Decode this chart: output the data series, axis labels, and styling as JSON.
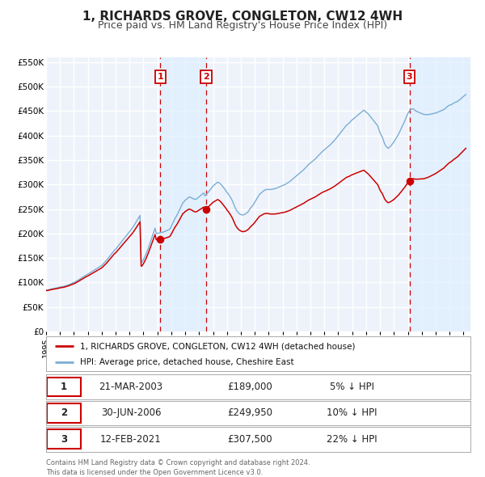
{
  "title": "1, RICHARDS GROVE, CONGLETON, CW12 4WH",
  "subtitle": "Price paid vs. HM Land Registry's House Price Index (HPI)",
  "title_fontsize": 11,
  "subtitle_fontsize": 9,
  "ylabel_ticks": [
    "£0",
    "£50K",
    "£100K",
    "£150K",
    "£200K",
    "£250K",
    "£300K",
    "£350K",
    "£400K",
    "£450K",
    "£500K",
    "£550K"
  ],
  "ylabel_values": [
    0,
    50000,
    100000,
    150000,
    200000,
    250000,
    300000,
    350000,
    400000,
    450000,
    500000,
    550000
  ],
  "ylim": [
    0,
    560000
  ],
  "xlim_start": 1995.0,
  "xlim_end": 2025.5,
  "bg_color": "#eef3fb",
  "plot_bg_color": "#eef3fb",
  "grid_color": "#ffffff",
  "sale_color": "#cc0000",
  "hpi_color": "#7aadd4",
  "sale_label": "1, RICHARDS GROVE, CONGLETON, CW12 4WH (detached house)",
  "hpi_label": "HPI: Average price, detached house, Cheshire East",
  "transactions": [
    {
      "num": 1,
      "date": "21-MAR-2003",
      "price": 189000,
      "pct": "5%",
      "x": 2003.22
    },
    {
      "num": 2,
      "date": "30-JUN-2006",
      "price": 249950,
      "pct": "10%",
      "x": 2006.5
    },
    {
      "num": 3,
      "date": "12-FEB-2021",
      "price": 307500,
      "pct": "22%",
      "x": 2021.12
    }
  ],
  "footer": "Contains HM Land Registry data © Crown copyright and database right 2024.\nThis data is licensed under the Open Government Licence v3.0.",
  "hpi_x": [
    1995.0,
    1995.083,
    1995.167,
    1995.25,
    1995.333,
    1995.417,
    1995.5,
    1995.583,
    1995.667,
    1995.75,
    1995.833,
    1995.917,
    1996.0,
    1996.083,
    1996.167,
    1996.25,
    1996.333,
    1996.417,
    1996.5,
    1996.583,
    1996.667,
    1996.75,
    1996.833,
    1996.917,
    1997.0,
    1997.083,
    1997.167,
    1997.25,
    1997.333,
    1997.417,
    1997.5,
    1997.583,
    1997.667,
    1997.75,
    1997.833,
    1997.917,
    1998.0,
    1998.083,
    1998.167,
    1998.25,
    1998.333,
    1998.417,
    1998.5,
    1998.583,
    1998.667,
    1998.75,
    1998.833,
    1998.917,
    1999.0,
    1999.083,
    1999.167,
    1999.25,
    1999.333,
    1999.417,
    1999.5,
    1999.583,
    1999.667,
    1999.75,
    1999.833,
    1999.917,
    2000.0,
    2000.083,
    2000.167,
    2000.25,
    2000.333,
    2000.417,
    2000.5,
    2000.583,
    2000.667,
    2000.75,
    2000.833,
    2000.917,
    2001.0,
    2001.083,
    2001.167,
    2001.25,
    2001.333,
    2001.417,
    2001.5,
    2001.583,
    2001.667,
    2001.75,
    2001.833,
    2001.917,
    2002.0,
    2002.083,
    2002.167,
    2002.25,
    2002.333,
    2002.417,
    2002.5,
    2002.583,
    2002.667,
    2002.75,
    2002.833,
    2002.917,
    2003.0,
    2003.083,
    2003.167,
    2003.25,
    2003.333,
    2003.417,
    2003.5,
    2003.583,
    2003.667,
    2003.75,
    2003.833,
    2003.917,
    2004.0,
    2004.083,
    2004.167,
    2004.25,
    2004.333,
    2004.417,
    2004.5,
    2004.583,
    2004.667,
    2004.75,
    2004.833,
    2004.917,
    2005.0,
    2005.083,
    2005.167,
    2005.25,
    2005.333,
    2005.417,
    2005.5,
    2005.583,
    2005.667,
    2005.75,
    2005.833,
    2005.917,
    2006.0,
    2006.083,
    2006.167,
    2006.25,
    2006.333,
    2006.417,
    2006.5,
    2006.583,
    2006.667,
    2006.75,
    2006.833,
    2006.917,
    2007.0,
    2007.083,
    2007.167,
    2007.25,
    2007.333,
    2007.417,
    2007.5,
    2007.583,
    2007.667,
    2007.75,
    2007.833,
    2007.917,
    2008.0,
    2008.083,
    2008.167,
    2008.25,
    2008.333,
    2008.417,
    2008.5,
    2008.583,
    2008.667,
    2008.75,
    2008.833,
    2008.917,
    2009.0,
    2009.083,
    2009.167,
    2009.25,
    2009.333,
    2009.417,
    2009.5,
    2009.583,
    2009.667,
    2009.75,
    2009.833,
    2009.917,
    2010.0,
    2010.083,
    2010.167,
    2010.25,
    2010.333,
    2010.417,
    2010.5,
    2010.583,
    2010.667,
    2010.75,
    2010.833,
    2010.917,
    2011.0,
    2011.083,
    2011.167,
    2011.25,
    2011.333,
    2011.417,
    2011.5,
    2011.583,
    2011.667,
    2011.75,
    2011.833,
    2011.917,
    2012.0,
    2012.083,
    2012.167,
    2012.25,
    2012.333,
    2012.417,
    2012.5,
    2012.583,
    2012.667,
    2012.75,
    2012.833,
    2012.917,
    2013.0,
    2013.083,
    2013.167,
    2013.25,
    2013.333,
    2013.417,
    2013.5,
    2013.583,
    2013.667,
    2013.75,
    2013.833,
    2013.917,
    2014.0,
    2014.083,
    2014.167,
    2014.25,
    2014.333,
    2014.417,
    2014.5,
    2014.583,
    2014.667,
    2014.75,
    2014.833,
    2014.917,
    2015.0,
    2015.083,
    2015.167,
    2015.25,
    2015.333,
    2015.417,
    2015.5,
    2015.583,
    2015.667,
    2015.75,
    2015.833,
    2015.917,
    2016.0,
    2016.083,
    2016.167,
    2016.25,
    2016.333,
    2016.417,
    2016.5,
    2016.583,
    2016.667,
    2016.75,
    2016.833,
    2016.917,
    2017.0,
    2017.083,
    2017.167,
    2017.25,
    2017.333,
    2017.417,
    2017.5,
    2017.583,
    2017.667,
    2017.75,
    2017.833,
    2017.917,
    2018.0,
    2018.083,
    2018.167,
    2018.25,
    2018.333,
    2018.417,
    2018.5,
    2018.583,
    2018.667,
    2018.75,
    2018.833,
    2018.917,
    2019.0,
    2019.083,
    2019.167,
    2019.25,
    2019.333,
    2019.417,
    2019.5,
    2019.583,
    2019.667,
    2019.75,
    2019.833,
    2019.917,
    2020.0,
    2020.083,
    2020.167,
    2020.25,
    2020.333,
    2020.417,
    2020.5,
    2020.583,
    2020.667,
    2020.75,
    2020.833,
    2020.917,
    2021.0,
    2021.083,
    2021.167,
    2021.25,
    2021.333,
    2021.417,
    2021.5,
    2021.583,
    2021.667,
    2021.75,
    2021.833,
    2021.917,
    2022.0,
    2022.083,
    2022.167,
    2022.25,
    2022.333,
    2022.417,
    2022.5,
    2022.583,
    2022.667,
    2022.75,
    2022.833,
    2022.917,
    2023.0,
    2023.083,
    2023.167,
    2023.25,
    2023.333,
    2023.417,
    2023.5,
    2023.583,
    2023.667,
    2023.75,
    2023.833,
    2023.917,
    2024.0,
    2024.083,
    2024.167,
    2024.25,
    2024.333,
    2024.417,
    2024.5,
    2024.583,
    2024.667,
    2024.75,
    2024.833,
    2024.917,
    2025.0,
    2025.083,
    2025.167
  ],
  "hpi_y": [
    85000,
    84500,
    85200,
    86000,
    86500,
    87000,
    87500,
    88000,
    88500,
    89000,
    89500,
    90000,
    90800,
    91200,
    91500,
    92000,
    92800,
    93500,
    94200,
    95000,
    96000,
    97000,
    98000,
    99200,
    100000,
    101000,
    102500,
    104000,
    105500,
    107000,
    108500,
    110000,
    111500,
    113000,
    114500,
    116000,
    117000,
    118500,
    120000,
    121500,
    123000,
    124500,
    126000,
    127500,
    129000,
    130500,
    132000,
    133500,
    135000,
    137500,
    140000,
    142500,
    145000,
    148000,
    151000,
    154000,
    157000,
    160000,
    163000,
    166000,
    168000,
    171000,
    174000,
    177000,
    180000,
    183000,
    186000,
    189000,
    192000,
    195000,
    198000,
    201000,
    204000,
    207000,
    210000,
    213500,
    217000,
    221000,
    225000,
    229000,
    233000,
    237000,
    141000,
    143000,
    147000,
    152000,
    157000,
    163000,
    169000,
    176000,
    183000,
    190000,
    197000,
    204000,
    211000,
    200000,
    200500,
    201000,
    201500,
    202000,
    202500,
    203000,
    204000,
    205000,
    206000,
    207000,
    208000,
    210000,
    215000,
    220000,
    225000,
    230000,
    234000,
    238000,
    243000,
    248000,
    253000,
    258000,
    263000,
    265000,
    268000,
    270000,
    272000,
    274000,
    274500,
    273500,
    272500,
    271000,
    270000,
    270000,
    271000,
    273000,
    275000,
    277000,
    279000,
    281000,
    283000,
    277000,
    279000,
    282000,
    285000,
    288000,
    291000,
    294000,
    297000,
    299000,
    301000,
    303000,
    305000,
    304000,
    302000,
    300000,
    297000,
    294000,
    291000,
    288000,
    284000,
    281000,
    278000,
    274000,
    270000,
    265000,
    259000,
    253000,
    248000,
    245000,
    242000,
    240000,
    239000,
    238000,
    238000,
    239000,
    240000,
    242000,
    244000,
    247000,
    251000,
    254000,
    257000,
    260000,
    264000,
    268000,
    272000,
    276000,
    280000,
    282000,
    284000,
    286000,
    288000,
    289000,
    290000,
    290000,
    290000,
    290000,
    290000,
    290500,
    291000,
    291500,
    292000,
    293000,
    294000,
    295000,
    296000,
    297000,
    298000,
    299000,
    300000,
    301500,
    303000,
    304500,
    306000,
    308000,
    310000,
    312000,
    314000,
    316000,
    318000,
    320000,
    322000,
    324000,
    326000,
    328000,
    330000,
    332500,
    335000,
    337500,
    340000,
    342000,
    344000,
    346000,
    348000,
    350000,
    352000,
    354500,
    357000,
    359500,
    362000,
    364500,
    367000,
    369000,
    371000,
    373000,
    375000,
    377000,
    379000,
    381000,
    383500,
    386000,
    388500,
    391000,
    394000,
    397000,
    400000,
    403000,
    406000,
    409000,
    412000,
    415000,
    418000,
    421000,
    423000,
    425000,
    427000,
    430000,
    432000,
    434000,
    436000,
    438000,
    440000,
    442000,
    444000,
    446000,
    448000,
    450000,
    452000,
    450000,
    448000,
    446000,
    444000,
    441000,
    438000,
    435000,
    432000,
    429000,
    426000,
    423000,
    420000,
    413000,
    406000,
    401000,
    397000,
    390000,
    383000,
    379000,
    376000,
    374000,
    376000,
    378000,
    381000,
    384000,
    387000,
    391000,
    395000,
    399000,
    403000,
    408000,
    413000,
    418000,
    423000,
    428000,
    434000,
    440000,
    445000,
    449000,
    452000,
    454000,
    455000,
    454000,
    452000,
    450000,
    449000,
    448000,
    447000,
    446000,
    445000,
    444000,
    443000,
    443000,
    443000,
    443000,
    443000,
    443500,
    444000,
    444500,
    445000,
    445500,
    446000,
    447000,
    448000,
    449000,
    450000,
    451000,
    452000,
    453000,
    455000,
    457000,
    459000,
    461000,
    462000,
    463000,
    464000,
    465500,
    467000,
    468000,
    469000,
    470000,
    472000,
    474000,
    476000,
    478000,
    480000,
    482000,
    484000,
    486000,
    487000,
    488000,
    489000,
    490000,
    492000,
    494000,
    496000,
    498000,
    500000,
    502000
  ],
  "sale_anchors_x": [
    1995.0,
    2003.22,
    2006.5,
    2021.12,
    2025.25
  ],
  "sale_anchors_y": [
    84000,
    189000,
    249950,
    307500,
    375000
  ]
}
